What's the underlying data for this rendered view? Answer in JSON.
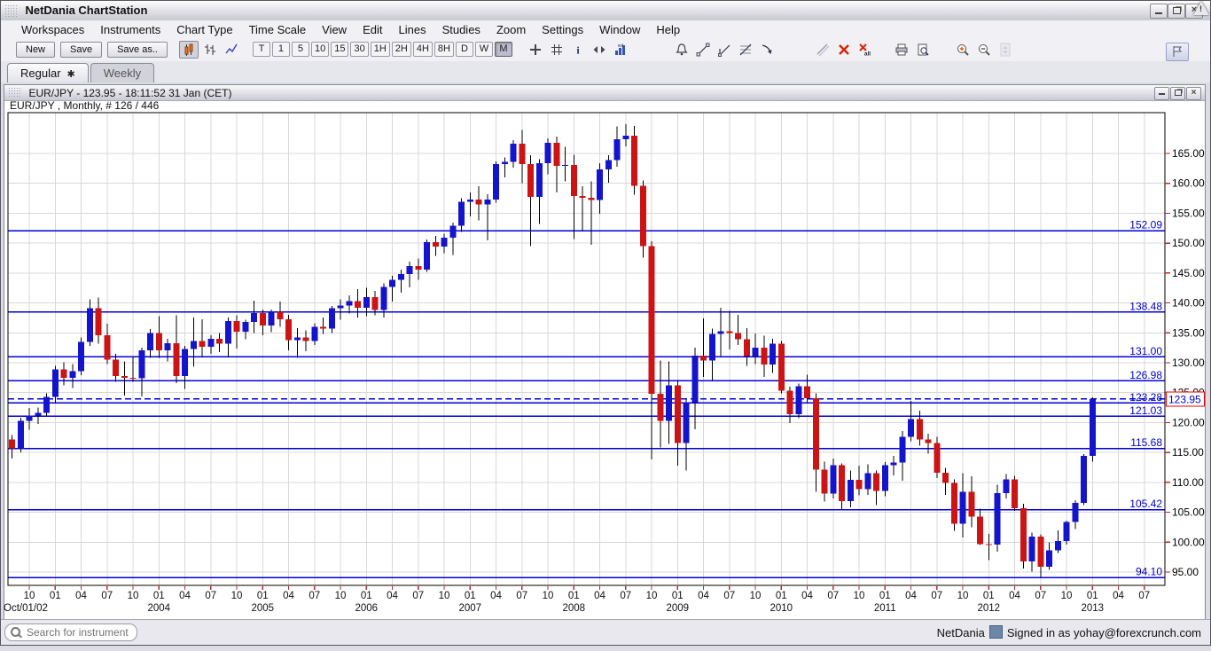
{
  "window": {
    "title": "NetDania ChartStation",
    "controls": {
      "minimize": "minimize",
      "restore": "restore",
      "close": "close",
      "alert": "!"
    }
  },
  "menu": {
    "items": [
      "Workspaces",
      "Instruments",
      "Chart Type",
      "Time Scale",
      "View",
      "Edit",
      "Lines",
      "Studies",
      "Zoom",
      "Settings",
      "Window",
      "Help"
    ]
  },
  "toolbar": {
    "file_buttons": [
      {
        "id": "new-workspace-button",
        "label": "New"
      },
      {
        "id": "save-workspace-button",
        "label": "Save"
      },
      {
        "id": "save-as-button",
        "label": "Save as.."
      }
    ],
    "chart_types": [
      {
        "id": "candlestick-chart-icon",
        "active": true
      },
      {
        "id": "bar-chart-icon",
        "active": false
      },
      {
        "id": "line-chart-icon",
        "active": false
      }
    ],
    "timeframes": [
      "T",
      "1",
      "5",
      "10",
      "15",
      "30",
      "1H",
      "2H",
      "4H",
      "8H",
      "D",
      "W",
      "M"
    ],
    "active_timeframe": "M",
    "tool_icons": [
      {
        "id": "crosshair-icon",
        "gap": 14
      },
      {
        "id": "grid-icon"
      },
      {
        "id": "info-icon"
      },
      {
        "id": "scroll-arrows-icon"
      },
      {
        "id": "volume-icon"
      },
      {
        "id": "alert-bell-icon",
        "gap": 46
      },
      {
        "id": "trend-line-icon"
      },
      {
        "id": "angle-trend-line-icon"
      },
      {
        "id": "fibonacci-tool-icon"
      },
      {
        "id": "arrow-annotation-icon"
      },
      {
        "id": "draw-line-icon",
        "gap": 40
      },
      {
        "id": "delete-selected-icon"
      },
      {
        "id": "delete-all-icon"
      },
      {
        "id": "print-icon",
        "gap": 18
      },
      {
        "id": "print-preview-icon"
      },
      {
        "id": "zoom-in-icon",
        "gap": 22
      },
      {
        "id": "zoom-out-icon"
      },
      {
        "id": "zoom-spinner-icon",
        "disabled": true
      }
    ],
    "pin_button": {
      "id": "pin-panel-button"
    }
  },
  "tabs": [
    {
      "label": "Regular",
      "marker": "✱",
      "active": true
    },
    {
      "label": "Weekly",
      "marker": "",
      "active": false
    }
  ],
  "chart_window": {
    "title": "EUR/JPY - 123.95 - 18:11:52  31 Jan (CET)",
    "instrument_label": "EUR/JPY , Monthly, # 126 / 446"
  },
  "status_bar": {
    "search_placeholder": "Search for instrument",
    "brand": "NetDania",
    "signed_in": "Signed in as yohay@forexcrunch.com"
  },
  "chart_data": {
    "type": "candlestick",
    "instrument": "EUR/JPY",
    "timeframe": "Monthly",
    "current_price": 123.95,
    "current_time": "18:11:52 31 Jan (CET)",
    "price_axis": {
      "min": 95,
      "max": 165,
      "step": 5
    },
    "x_axis": {
      "first_year_label": "Oct/01/02",
      "year_labels": [
        "2004",
        "2005",
        "2006",
        "2007",
        "2008",
        "2009",
        "2010",
        "2011",
        "2012",
        "2013"
      ],
      "future_ticks": [
        "2013-04",
        "2013-07"
      ]
    },
    "horizontal_lines": [
      152.09,
      138.48,
      131.0,
      126.98,
      123.28,
      121.03,
      115.68,
      105.42,
      94.1
    ],
    "colors": {
      "up": "#1414cc",
      "down": "#cc1414",
      "wick": "#000000",
      "line": "#0000dd",
      "line_label": "#0000cc",
      "tick": "#cc2222",
      "grid": "#d8d8d8",
      "current_price_box": "#ee0000",
      "current_price_text": "#0000cc"
    },
    "candles": [
      [
        "2002-08",
        117.2,
        117.9,
        114.0,
        115.7
      ],
      [
        "2002-09",
        115.7,
        120.8,
        115.0,
        120.3
      ],
      [
        "2002-10",
        120.3,
        122.4,
        118.8,
        121.2
      ],
      [
        "2002-11",
        121.2,
        122.5,
        119.8,
        121.6
      ],
      [
        "2002-12",
        121.6,
        124.9,
        121.0,
        124.3
      ],
      [
        "2003-01",
        124.3,
        129.5,
        123.3,
        128.9
      ],
      [
        "2003-02",
        128.9,
        130.1,
        126.2,
        127.5
      ],
      [
        "2003-03",
        127.5,
        129.8,
        125.8,
        128.6
      ],
      [
        "2003-04",
        128.6,
        134.2,
        127.9,
        133.5
      ],
      [
        "2003-05",
        133.5,
        140.6,
        132.8,
        139.1
      ],
      [
        "2003-06",
        139.1,
        140.9,
        133.2,
        134.6
      ],
      [
        "2003-07",
        134.6,
        136.5,
        129.8,
        130.5
      ],
      [
        "2003-08",
        130.5,
        131.5,
        126.8,
        127.8
      ],
      [
        "2003-09",
        127.8,
        130.2,
        124.5,
        127.5
      ],
      [
        "2003-10",
        127.5,
        131.0,
        126.8,
        127.4
      ],
      [
        "2003-11",
        127.4,
        132.5,
        124.4,
        132.1
      ],
      [
        "2003-12",
        132.1,
        135.6,
        130.8,
        135.0
      ],
      [
        "2004-01",
        135.0,
        137.8,
        130.8,
        132.1
      ],
      [
        "2004-02",
        132.1,
        134.0,
        130.2,
        133.3
      ],
      [
        "2004-03",
        133.3,
        137.9,
        126.6,
        127.8
      ],
      [
        "2004-04",
        127.8,
        132.8,
        125.6,
        132.3
      ],
      [
        "2004-05",
        132.3,
        137.6,
        129.3,
        133.6
      ],
      [
        "2004-06",
        133.6,
        137.3,
        131.0,
        132.7
      ],
      [
        "2004-07",
        132.7,
        134.6,
        131.5,
        134.0
      ],
      [
        "2004-08",
        134.0,
        135.0,
        131.8,
        133.2
      ],
      [
        "2004-09",
        133.2,
        137.6,
        130.9,
        137.0
      ],
      [
        "2004-10",
        137.0,
        137.9,
        132.4,
        135.2
      ],
      [
        "2004-11",
        135.2,
        137.2,
        133.9,
        136.8
      ],
      [
        "2004-12",
        136.8,
        140.4,
        135.0,
        138.3
      ],
      [
        "2005-01",
        138.3,
        138.9,
        134.6,
        136.2
      ],
      [
        "2005-02",
        136.2,
        138.9,
        135.1,
        138.5
      ],
      [
        "2005-03",
        138.5,
        140.2,
        136.0,
        137.3
      ],
      [
        "2005-04",
        137.3,
        138.0,
        132.1,
        133.8
      ],
      [
        "2005-05",
        133.8,
        135.8,
        130.8,
        134.2
      ],
      [
        "2005-06",
        134.2,
        135.4,
        131.9,
        133.6
      ],
      [
        "2005-07",
        133.6,
        136.6,
        133.0,
        136.0
      ],
      [
        "2005-08",
        136.0,
        137.6,
        134.8,
        135.7
      ],
      [
        "2005-09",
        135.7,
        139.5,
        135.0,
        139.1
      ],
      [
        "2005-10",
        139.1,
        140.6,
        137.2,
        139.6
      ],
      [
        "2005-11",
        139.6,
        141.3,
        138.2,
        140.3
      ],
      [
        "2005-12",
        140.3,
        142.3,
        137.6,
        139.2
      ],
      [
        "2006-01",
        139.2,
        142.5,
        137.8,
        141.0
      ],
      [
        "2006-02",
        141.0,
        142.0,
        137.9,
        138.8
      ],
      [
        "2006-03",
        138.8,
        143.3,
        137.6,
        142.7
      ],
      [
        "2006-04",
        142.7,
        144.5,
        140.2,
        143.9
      ],
      [
        "2006-05",
        143.9,
        145.6,
        141.7,
        144.8
      ],
      [
        "2006-06",
        144.8,
        146.9,
        142.6,
        146.2
      ],
      [
        "2006-07",
        146.2,
        147.4,
        143.9,
        145.6
      ],
      [
        "2006-08",
        145.6,
        150.6,
        145.2,
        150.2
      ],
      [
        "2006-09",
        150.2,
        151.2,
        147.9,
        149.4
      ],
      [
        "2006-10",
        149.4,
        151.6,
        148.3,
        150.9
      ],
      [
        "2006-11",
        150.9,
        153.4,
        148.0,
        152.9
      ],
      [
        "2006-12",
        152.9,
        157.5,
        151.9,
        156.9
      ],
      [
        "2007-01",
        156.9,
        158.5,
        154.5,
        157.3
      ],
      [
        "2007-02",
        157.3,
        159.5,
        153.8,
        156.5
      ],
      [
        "2007-03",
        156.5,
        158.2,
        150.5,
        157.3
      ],
      [
        "2007-04",
        157.3,
        163.7,
        156.8,
        163.2
      ],
      [
        "2007-05",
        163.2,
        164.3,
        161.0,
        163.6
      ],
      [
        "2007-06",
        163.6,
        167.2,
        162.6,
        166.6
      ],
      [
        "2007-07",
        166.6,
        168.9,
        160.0,
        163.2
      ],
      [
        "2007-08",
        163.2,
        164.7,
        149.5,
        157.7
      ],
      [
        "2007-09",
        157.7,
        164.0,
        153.2,
        163.4
      ],
      [
        "2007-10",
        163.4,
        167.5,
        161.5,
        166.8
      ],
      [
        "2007-11",
        166.8,
        167.8,
        158.5,
        162.9
      ],
      [
        "2007-12",
        162.9,
        166.1,
        160.3,
        163.1
      ],
      [
        "2008-01",
        163.1,
        164.8,
        150.7,
        157.9
      ],
      [
        "2008-02",
        157.9,
        159.5,
        152.0,
        157.6
      ],
      [
        "2008-03",
        157.6,
        160.3,
        149.7,
        157.2
      ],
      [
        "2008-04",
        157.2,
        163.4,
        154.9,
        162.3
      ],
      [
        "2008-05",
        162.3,
        164.7,
        160.1,
        163.9
      ],
      [
        "2008-06",
        163.9,
        169.5,
        162.8,
        167.4
      ],
      [
        "2008-07",
        167.4,
        169.9,
        166.2,
        168.0
      ],
      [
        "2008-08",
        168.0,
        169.6,
        158.1,
        159.6
      ],
      [
        "2008-09",
        159.6,
        160.5,
        147.6,
        149.5
      ],
      [
        "2008-10",
        149.5,
        150.3,
        113.8,
        124.8
      ],
      [
        "2008-11",
        124.8,
        130.4,
        115.8,
        120.3
      ],
      [
        "2008-12",
        120.3,
        130.2,
        116.4,
        126.2
      ],
      [
        "2009-01",
        126.2,
        127.1,
        112.8,
        116.6
      ],
      [
        "2009-02",
        116.6,
        123.9,
        112.0,
        123.4
      ],
      [
        "2009-03",
        123.4,
        132.5,
        118.9,
        131.2
      ],
      [
        "2009-04",
        131.2,
        137.4,
        127.6,
        130.4
      ],
      [
        "2009-05",
        130.4,
        135.7,
        127.0,
        134.8
      ],
      [
        "2009-06",
        134.8,
        139.2,
        131.1,
        135.3
      ],
      [
        "2009-07",
        135.3,
        138.7,
        132.2,
        135.0
      ],
      [
        "2009-08",
        135.0,
        138.0,
        133.0,
        133.9
      ],
      [
        "2009-09",
        133.9,
        135.8,
        129.5,
        131.1
      ],
      [
        "2009-10",
        131.1,
        134.9,
        129.8,
        132.5
      ],
      [
        "2009-11",
        132.5,
        134.5,
        127.6,
        129.7
      ],
      [
        "2009-12",
        129.7,
        134.0,
        128.3,
        133.2
      ],
      [
        "2010-01",
        133.2,
        133.6,
        124.9,
        125.3
      ],
      [
        "2010-02",
        125.3,
        126.0,
        119.9,
        121.4
      ],
      [
        "2010-03",
        121.4,
        126.5,
        120.7,
        126.1
      ],
      [
        "2010-04",
        126.1,
        128.0,
        123.3,
        124.1
      ],
      [
        "2010-05",
        124.1,
        124.9,
        108.4,
        112.1
      ],
      [
        "2010-06",
        112.1,
        113.5,
        106.8,
        108.1
      ],
      [
        "2010-07",
        108.1,
        114.0,
        107.3,
        112.9
      ],
      [
        "2010-08",
        112.9,
        113.2,
        105.4,
        106.9
      ],
      [
        "2010-09",
        106.9,
        112.0,
        105.8,
        110.4
      ],
      [
        "2010-10",
        110.4,
        112.8,
        107.8,
        108.9
      ],
      [
        "2010-11",
        108.9,
        113.0,
        107.9,
        111.5
      ],
      [
        "2010-12",
        111.5,
        112.0,
        106.2,
        108.6
      ],
      [
        "2011-01",
        108.6,
        113.4,
        107.7,
        112.9
      ],
      [
        "2011-02",
        112.9,
        114.4,
        111.2,
        113.3
      ],
      [
        "2011-03",
        113.3,
        118.6,
        110.3,
        117.6
      ],
      [
        "2011-04",
        117.6,
        123.6,
        116.9,
        120.6
      ],
      [
        "2011-05",
        120.6,
        122.0,
        116.1,
        117.2
      ],
      [
        "2011-06",
        117.2,
        118.1,
        114.8,
        116.6
      ],
      [
        "2011-07",
        116.6,
        117.6,
        110.7,
        111.6
      ],
      [
        "2011-08",
        111.6,
        112.4,
        107.9,
        109.9
      ],
      [
        "2011-09",
        109.9,
        110.5,
        101.9,
        103.1
      ],
      [
        "2011-10",
        103.1,
        111.5,
        100.8,
        108.4
      ],
      [
        "2011-11",
        108.4,
        111.0,
        102.5,
        104.3
      ],
      [
        "2011-12",
        104.3,
        105.6,
        99.5,
        99.7
      ],
      [
        "2012-01",
        99.7,
        101.4,
        97.0,
        99.6
      ],
      [
        "2012-02",
        99.6,
        109.6,
        98.4,
        108.2
      ],
      [
        "2012-03",
        108.2,
        111.4,
        107.3,
        110.5
      ],
      [
        "2012-04",
        110.5,
        111.1,
        105.2,
        105.7
      ],
      [
        "2012-05",
        105.7,
        106.4,
        95.6,
        96.8
      ],
      [
        "2012-06",
        96.8,
        101.6,
        95.1,
        100.9
      ],
      [
        "2012-07",
        100.9,
        101.3,
        94.1,
        95.9
      ],
      [
        "2012-08",
        95.9,
        100.0,
        95.4,
        98.6
      ],
      [
        "2012-09",
        98.6,
        102.0,
        98.2,
        100.2
      ],
      [
        "2012-10",
        100.2,
        103.6,
        99.6,
        103.4
      ],
      [
        "2012-11",
        103.4,
        107.0,
        102.2,
        106.6
      ],
      [
        "2012-12",
        106.6,
        114.7,
        106.2,
        114.4
      ],
      [
        "2013-01",
        114.4,
        124.2,
        113.5,
        123.95
      ]
    ]
  }
}
